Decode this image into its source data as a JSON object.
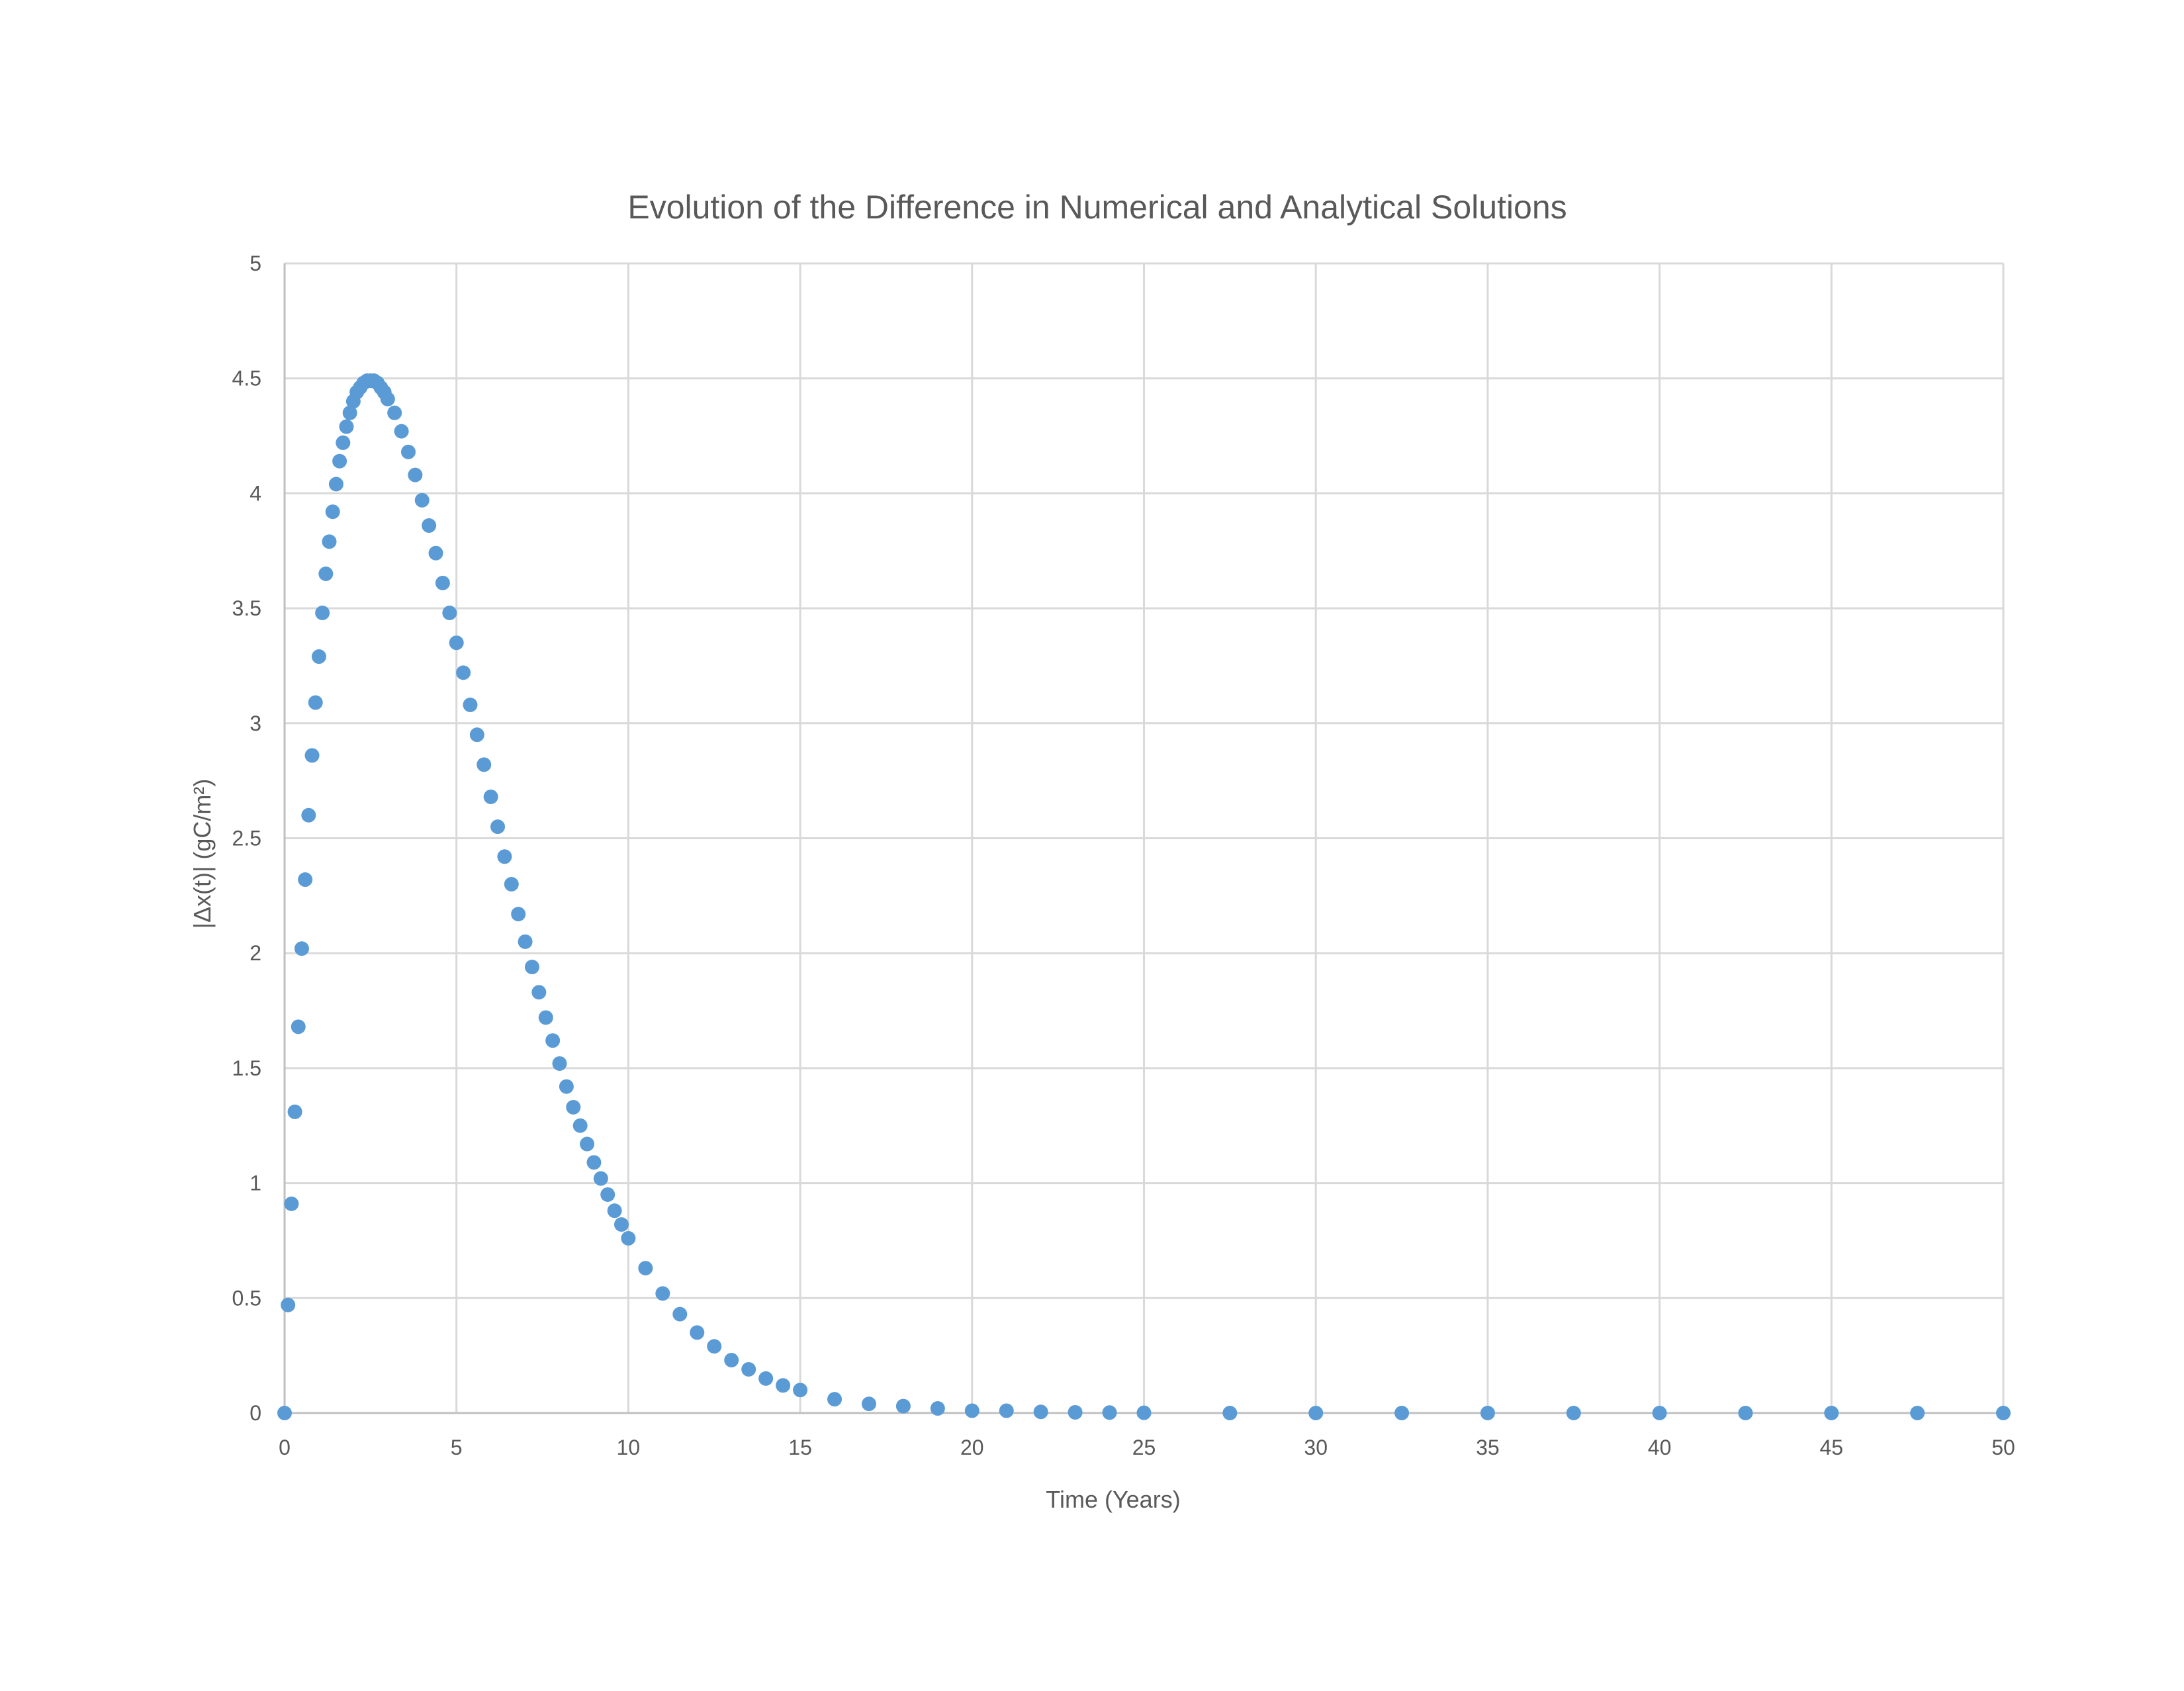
{
  "chart_data": {
    "type": "scatter",
    "title": "Evolution of the Difference in Numerical and Analytical Solutions",
    "xlabel": "Time (Years)",
    "ylabel": "|Δx(t)|   (gC/m²)",
    "xlim": [
      0,
      50
    ],
    "ylim": [
      0,
      5
    ],
    "x_ticks": [
      "0",
      "5",
      "10",
      "15",
      "20",
      "25",
      "30",
      "35",
      "40",
      "45",
      "50"
    ],
    "y_ticks": [
      "0",
      "0.5",
      "1",
      "1.5",
      "2",
      "2.5",
      "3",
      "3.5",
      "4",
      "4.5",
      "5"
    ],
    "grid": true,
    "legend": "none",
    "marker_color": "#5B9BD5",
    "gridline_color": "#D9D9D9",
    "series": [
      {
        "values": [
          [
            0,
            0
          ],
          [
            0.1,
            0.47
          ],
          [
            0.2,
            0.91
          ],
          [
            0.3,
            1.31
          ],
          [
            0.4,
            1.68
          ],
          [
            0.5,
            2.02
          ],
          [
            0.6,
            2.32
          ],
          [
            0.7,
            2.6
          ],
          [
            0.8,
            2.86
          ],
          [
            0.9,
            3.09
          ],
          [
            1.0,
            3.29
          ],
          [
            1.1,
            3.48
          ],
          [
            1.2,
            3.65
          ],
          [
            1.3,
            3.79
          ],
          [
            1.4,
            3.92
          ],
          [
            1.5,
            4.04
          ],
          [
            1.6,
            4.14
          ],
          [
            1.7,
            4.22
          ],
          [
            1.8,
            4.29
          ],
          [
            1.9,
            4.35
          ],
          [
            2.0,
            4.4
          ],
          [
            2.1,
            4.44
          ],
          [
            2.2,
            4.46
          ],
          [
            2.3,
            4.48
          ],
          [
            2.4,
            4.49
          ],
          [
            2.5,
            4.49
          ],
          [
            2.6,
            4.49
          ],
          [
            2.7,
            4.48
          ],
          [
            2.8,
            4.46
          ],
          [
            2.9,
            4.44
          ],
          [
            3.0,
            4.41
          ],
          [
            3.2,
            4.35
          ],
          [
            3.4,
            4.27
          ],
          [
            3.6,
            4.18
          ],
          [
            3.8,
            4.08
          ],
          [
            4.0,
            3.97
          ],
          [
            4.2,
            3.86
          ],
          [
            4.4,
            3.74
          ],
          [
            4.6,
            3.61
          ],
          [
            4.8,
            3.48
          ],
          [
            5.0,
            3.35
          ],
          [
            5.2,
            3.22
          ],
          [
            5.4,
            3.08
          ],
          [
            5.6,
            2.95
          ],
          [
            5.8,
            2.82
          ],
          [
            6.0,
            2.68
          ],
          [
            6.2,
            2.55
          ],
          [
            6.4,
            2.42
          ],
          [
            6.6,
            2.3
          ],
          [
            6.8,
            2.17
          ],
          [
            7.0,
            2.05
          ],
          [
            7.2,
            1.94
          ],
          [
            7.4,
            1.83
          ],
          [
            7.6,
            1.72
          ],
          [
            7.8,
            1.62
          ],
          [
            8.0,
            1.52
          ],
          [
            8.2,
            1.42
          ],
          [
            8.4,
            1.33
          ],
          [
            8.6,
            1.25
          ],
          [
            8.8,
            1.17
          ],
          [
            9.0,
            1.09
          ],
          [
            9.2,
            1.02
          ],
          [
            9.4,
            0.95
          ],
          [
            9.6,
            0.88
          ],
          [
            9.8,
            0.82
          ],
          [
            10.0,
            0.76
          ],
          [
            10.5,
            0.63
          ],
          [
            11.0,
            0.52
          ],
          [
            11.5,
            0.43
          ],
          [
            12.0,
            0.35
          ],
          [
            12.5,
            0.29
          ],
          [
            13.0,
            0.23
          ],
          [
            13.5,
            0.19
          ],
          [
            14.0,
            0.15
          ],
          [
            14.5,
            0.12
          ],
          [
            15.0,
            0.1
          ],
          [
            16.0,
            0.06
          ],
          [
            17.0,
            0.04
          ],
          [
            18.0,
            0.03
          ],
          [
            19.0,
            0.02
          ],
          [
            20.0,
            0.01
          ],
          [
            21.0,
            0.01
          ],
          [
            22.0,
            0.005
          ],
          [
            23.0,
            0.003
          ],
          [
            24.0,
            0.002
          ],
          [
            25.0,
            0.001
          ],
          [
            27.5,
            0.0
          ],
          [
            30.0,
            0.0
          ],
          [
            32.5,
            0.0
          ],
          [
            35.0,
            0.0
          ],
          [
            37.5,
            0.0
          ],
          [
            40.0,
            0.0
          ],
          [
            42.5,
            0.0
          ],
          [
            45.0,
            0.0
          ],
          [
            47.5,
            0.0
          ],
          [
            50.0,
            0.0
          ]
        ]
      }
    ]
  }
}
